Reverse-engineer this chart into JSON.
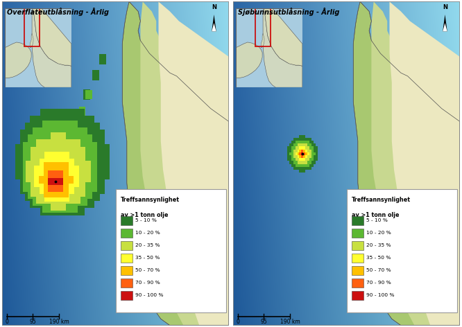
{
  "title_left": "Overflateutblåsning - Årlig",
  "title_right": "Sjøbunnsutblåsning - Årlig",
  "legend_title_line1": "Treffsannsynlighet",
  "legend_title_line2": "av >1 tonn olje",
  "legend_entries": [
    {
      "label": "5 - 10 %",
      "color": "#2a7a2a"
    },
    {
      "label": "10 - 20 %",
      "color": "#5cb832"
    },
    {
      "label": "20 - 35 %",
      "color": "#c8e040"
    },
    {
      "label": "35 - 50 %",
      "color": "#ffff30"
    },
    {
      "label": "50 - 70 %",
      "color": "#ffc000"
    },
    {
      "label": "70 - 90 %",
      "color": "#ff6010"
    },
    {
      "label": "90 - 100 %",
      "color": "#cc1010"
    }
  ],
  "ocean_shallow": "#88c8e8",
  "ocean_mid": "#5aaad8",
  "ocean_deep": "#2060b0",
  "land_coast": "#a8c870",
  "land_mid": "#c8d890",
  "land_inland": "#ece8c0",
  "background_color": "#ffffff"
}
